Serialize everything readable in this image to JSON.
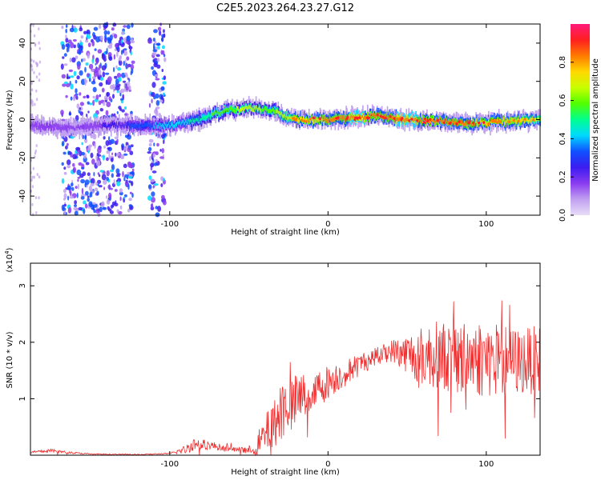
{
  "title": "C2E5.2023.264.23.27.G12",
  "colors": {
    "snr_line": "#f03030",
    "axis": "#000000",
    "colorbar": [
      "#e8ddf8",
      "#c0a0f0",
      "#8a3cf0",
      "#3c1cf0",
      "#1050ff",
      "#00d8ff",
      "#00ff90",
      "#50ff00",
      "#c8ff00",
      "#ffd800",
      "#ff7a00",
      "#ff2020",
      "#ff1a7a"
    ]
  },
  "chart_data": [
    {
      "type": "heatmap",
      "xlabel": "Height of straight line (km)",
      "ylabel": "Frequency (Hz)",
      "xlim": [
        -188,
        134
      ],
      "ylim": [
        -50,
        50
      ],
      "xticks": [
        -100,
        0,
        100
      ],
      "xtick_labels": [
        "-100",
        "0",
        "100"
      ],
      "yticks": [
        -40,
        -20,
        0,
        20,
        40
      ],
      "ytick_labels": [
        "-40",
        "-20",
        "0",
        "20",
        "40"
      ],
      "colorbar": {
        "label": "Normalized spectral amplitude",
        "range": [
          0,
          1
        ],
        "ticks": [
          0,
          0.2,
          0.4,
          0.6,
          0.8
        ],
        "tick_labels": [
          "0.0",
          "0.2",
          "0.4",
          "0.6",
          "0.8"
        ]
      },
      "ridge": {
        "x": [
          -188,
          -170,
          -160,
          -130,
          -120,
          -100,
          -80,
          -65,
          -50,
          -35,
          -25,
          -20,
          0,
          20,
          30,
          50,
          70,
          90,
          110,
          134
        ],
        "y": [
          -3,
          -4,
          -4,
          -3,
          -3,
          -3,
          0,
          5,
          6,
          5,
          1,
          0,
          0,
          1,
          2,
          0,
          -1,
          -2,
          -1,
          0
        ],
        "peak_amplitude": [
          0.2,
          0.2,
          0.15,
          0.25,
          0.35,
          0.4,
          0.5,
          0.6,
          0.65,
          0.6,
          0.7,
          0.75,
          0.8,
          0.85,
          0.8,
          0.85,
          0.8,
          0.8,
          0.75,
          0.7
        ]
      },
      "noise_bands": [
        {
          "x_range": [
            -168,
            -123
          ],
          "amplitude": 0.15
        },
        {
          "x_range": [
            -113,
            -103
          ],
          "amplitude": 0.15
        }
      ]
    },
    {
      "type": "line",
      "xlabel": "Height of straight line (km)",
      "ylabel": "SNR (10 * v/v)",
      "axis_multiplier": "(x10^4)",
      "xlim": [
        -188,
        134
      ],
      "ylim": [
        0,
        3.4
      ],
      "xticks": [
        -100,
        0,
        100
      ],
      "xtick_labels": [
        "-100",
        "0",
        "100"
      ],
      "yticks": [
        1,
        2,
        3
      ],
      "ytick_labels": [
        "1",
        "2",
        "3"
      ],
      "series": [
        {
          "x": [
            -188,
            -175,
            -165,
            -150,
            -120,
            -100,
            -90,
            -85,
            -75,
            -65,
            -50,
            -45,
            -40,
            -35,
            -30,
            -25,
            -20,
            -15,
            -10,
            -5,
            0,
            10,
            20,
            30,
            40,
            50,
            60,
            70,
            80,
            90,
            100,
            110,
            120,
            134
          ],
          "y": [
            0.05,
            0.08,
            0.05,
            0.02,
            0.01,
            0.03,
            0.1,
            0.2,
            0.18,
            0.12,
            0.08,
            0.15,
            0.35,
            0.55,
            0.8,
            0.9,
            0.95,
            1.05,
            1.1,
            1.2,
            1.3,
            1.45,
            1.6,
            1.75,
            1.85,
            1.8,
            1.75,
            1.8,
            1.7,
            1.75,
            1.7,
            1.7,
            1.65,
            1.7
          ],
          "spread": [
            0.02,
            0.03,
            0.02,
            0.01,
            0.01,
            0.01,
            0.08,
            0.12,
            0.08,
            0.05,
            0.05,
            0.15,
            0.35,
            0.4,
            0.6,
            0.45,
            0.5,
            0.45,
            0.35,
            0.35,
            0.3,
            0.25,
            0.2,
            0.15,
            0.2,
            0.35,
            0.55,
            0.6,
            0.65,
            0.7,
            0.7,
            0.65,
            0.6,
            0.6
          ]
        }
      ]
    }
  ]
}
